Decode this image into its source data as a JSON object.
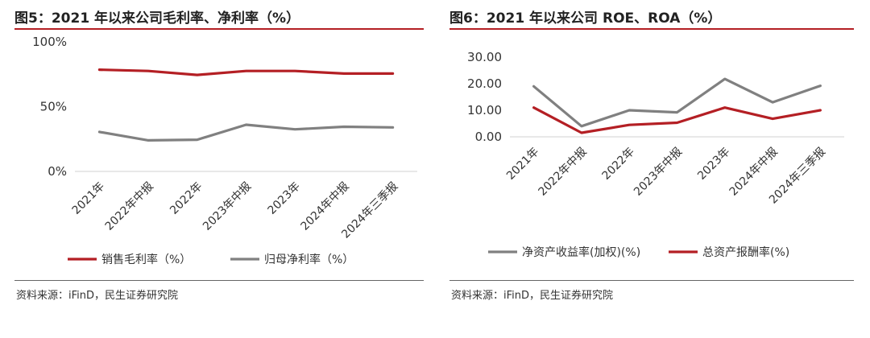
{
  "left": {
    "title": "图5：2021 年以来公司毛利率、净利率（%）",
    "source": "资料来源：iFinD，民生证券研究院"
  },
  "right": {
    "title": "图6：2021 年以来公司 ROE、ROA（%）",
    "source": "资料来源：iFinD，民生证券研究院"
  },
  "colors": {
    "red": "#b41f24",
    "gray": "#808080",
    "rule": "#b41f24"
  },
  "chart_data": [
    {
      "type": "line",
      "categories": [
        "2021年",
        "2022年中报",
        "2022年",
        "2023年中报",
        "2023年",
        "2024年中报",
        "2024年三季报"
      ],
      "ylim": [
        0,
        100
      ],
      "yticks": [
        0,
        50,
        100
      ],
      "ytick_labels": [
        "0%",
        "50%",
        "100%"
      ],
      "grid": false,
      "legend": "bottom",
      "series": [
        {
          "name": "销售毛利率（%）",
          "color": "#b41f24",
          "values": [
            78.5,
            77.5,
            74.5,
            77.5,
            77.5,
            75.5,
            75.5
          ]
        },
        {
          "name": "归母净利率（%）",
          "color": "#808080",
          "values": [
            30.5,
            24,
            24.5,
            36,
            32.5,
            34.5,
            34
          ]
        }
      ]
    },
    {
      "type": "line",
      "categories": [
        "2021年",
        "2022年中报",
        "2022年",
        "2023年中报",
        "2023年",
        "2024年中报",
        "2024年三季报"
      ],
      "ylim": [
        0,
        30
      ],
      "yticks": [
        0,
        10,
        20,
        30
      ],
      "ytick_labels": [
        "0.00",
        "10.00",
        "20.00",
        "30.00"
      ],
      "grid": false,
      "legend": "bottom",
      "series": [
        {
          "name": "净资产收益率(加权)(%)",
          "color": "#808080",
          "values": [
            19.0,
            4.0,
            10.0,
            9.2,
            21.8,
            13.0,
            19.2
          ]
        },
        {
          "name": "总资产报酬率(%)",
          "color": "#b41f24",
          "values": [
            11.0,
            1.5,
            4.5,
            5.3,
            11.0,
            6.8,
            10.0
          ]
        }
      ]
    }
  ]
}
